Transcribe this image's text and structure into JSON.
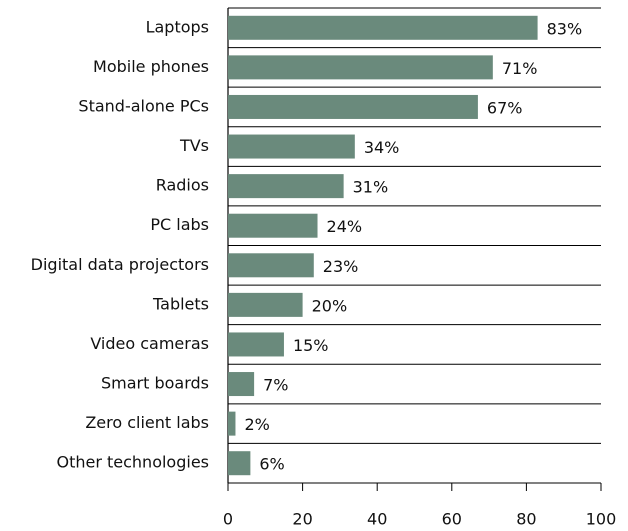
{
  "chart_data": {
    "type": "barh",
    "categories": [
      "Laptops",
      "Mobile phones",
      "Stand-alone PCs",
      "TVs",
      "Radios",
      "PC labs",
      "Digital data projectors",
      "Tablets",
      "Video cameras",
      "Smart boards",
      "Zero client labs",
      "Other technologies"
    ],
    "values": [
      83,
      71,
      67,
      34,
      31,
      24,
      23,
      20,
      15,
      7,
      2,
      6
    ],
    "value_labels": [
      "83%",
      "71%",
      "67%",
      "34%",
      "31%",
      "24%",
      "23%",
      "20%",
      "15%",
      "7%",
      "2%",
      "6%"
    ],
    "color": "#6a8a7c",
    "xlim": [
      0,
      100
    ],
    "xticks": [
      0,
      20,
      40,
      60,
      80,
      100
    ]
  }
}
